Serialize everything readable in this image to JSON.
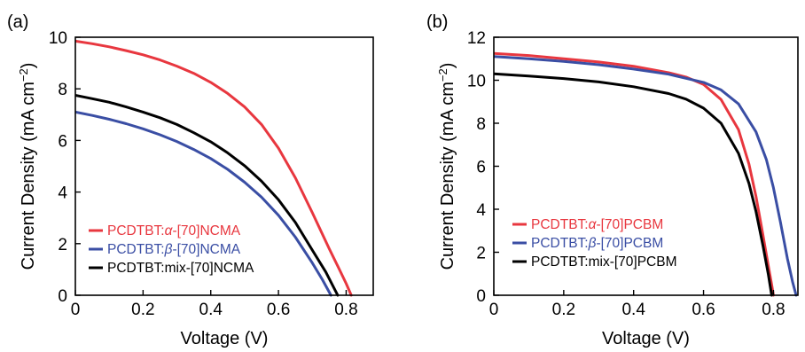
{
  "colors": {
    "red": "#e8373f",
    "blue": "#3a4ea4",
    "black": "#000000"
  },
  "chart_data": [
    {
      "type": "line",
      "panel_label": "(a)",
      "xlabel": "Voltage (V)",
      "ylabel": "Current Density (mA cm",
      "ylabel_sup": "−2",
      "ylabel_close": ")",
      "xlim": [
        0,
        0.88
      ],
      "ylim": [
        0,
        10
      ],
      "xticks": [
        0,
        0.2,
        0.4,
        0.6,
        0.8
      ],
      "xtick_labels": [
        "0",
        "0.2",
        "0.4",
        "0.6",
        "0.8"
      ],
      "yticks": [
        0,
        2,
        4,
        6,
        8,
        10
      ],
      "ytick_labels": [
        "0",
        "2",
        "4",
        "6",
        "8",
        "10"
      ],
      "legend_position": "bottom-left",
      "series": [
        {
          "name_prefix": "PCDTBT:",
          "name_greek": "α",
          "name_suffix": "-[70]NCMA",
          "color": "red",
          "x": [
            0,
            0.05,
            0.1,
            0.15,
            0.2,
            0.25,
            0.3,
            0.35,
            0.4,
            0.45,
            0.5,
            0.55,
            0.6,
            0.65,
            0.7,
            0.75,
            0.78,
            0.8,
            0.815
          ],
          "y": [
            9.85,
            9.75,
            9.63,
            9.48,
            9.32,
            9.12,
            8.88,
            8.6,
            8.25,
            7.82,
            7.3,
            6.62,
            5.7,
            4.55,
            3.2,
            1.8,
            1.0,
            0.45,
            0
          ]
        },
        {
          "name_prefix": "PCDTBT:",
          "name_greek": "β",
          "name_suffix": "-[70]NCMA",
          "color": "blue",
          "x": [
            0,
            0.05,
            0.1,
            0.15,
            0.2,
            0.25,
            0.3,
            0.35,
            0.4,
            0.45,
            0.5,
            0.55,
            0.6,
            0.65,
            0.7,
            0.73,
            0.755
          ],
          "y": [
            7.1,
            6.97,
            6.82,
            6.65,
            6.45,
            6.22,
            5.96,
            5.65,
            5.3,
            4.88,
            4.38,
            3.8,
            3.1,
            2.25,
            1.25,
            0.6,
            0
          ]
        },
        {
          "name_prefix": "PCDTBT:mix-[70]NCMA",
          "name_greek": "",
          "name_suffix": "",
          "color": "black",
          "x": [
            0,
            0.05,
            0.1,
            0.15,
            0.2,
            0.25,
            0.3,
            0.35,
            0.4,
            0.45,
            0.5,
            0.55,
            0.6,
            0.65,
            0.7,
            0.74,
            0.775
          ],
          "y": [
            7.75,
            7.62,
            7.48,
            7.3,
            7.1,
            6.88,
            6.62,
            6.3,
            5.95,
            5.52,
            5.02,
            4.42,
            3.7,
            2.82,
            1.75,
            0.9,
            0
          ]
        }
      ]
    },
    {
      "type": "line",
      "panel_label": "(b)",
      "xlabel": "Voltage (V)",
      "ylabel": "Current Density (mA cm",
      "ylabel_sup": "−2",
      "ylabel_close": ")",
      "xlim": [
        0,
        0.87
      ],
      "ylim": [
        0,
        12
      ],
      "xticks": [
        0,
        0.2,
        0.4,
        0.6,
        0.8
      ],
      "xtick_labels": [
        "0",
        "0.2",
        "0.4",
        "0.6",
        "0.8"
      ],
      "yticks": [
        0,
        2,
        4,
        6,
        8,
        10,
        12
      ],
      "ytick_labels": [
        "0",
        "2",
        "4",
        "6",
        "8",
        "10",
        "12"
      ],
      "legend_position": "bottom-left",
      "series": [
        {
          "name_prefix": "PCDTBT:",
          "name_greek": "α",
          "name_suffix": "-[70]PCBM",
          "color": "red",
          "x": [
            0,
            0.1,
            0.2,
            0.3,
            0.4,
            0.5,
            0.55,
            0.6,
            0.65,
            0.7,
            0.73,
            0.75,
            0.77,
            0.785,
            0.795,
            0.8
          ],
          "y": [
            11.25,
            11.15,
            11.0,
            10.85,
            10.65,
            10.35,
            10.15,
            9.8,
            9.1,
            7.7,
            6.1,
            4.6,
            2.8,
            1.4,
            0.5,
            0
          ]
        },
        {
          "name_prefix": "PCDTBT:",
          "name_greek": "β",
          "name_suffix": "-[70]PCBM",
          "color": "blue",
          "x": [
            0,
            0.1,
            0.2,
            0.3,
            0.4,
            0.5,
            0.6,
            0.65,
            0.7,
            0.75,
            0.78,
            0.8,
            0.82,
            0.84,
            0.855,
            0.865
          ],
          "y": [
            11.1,
            11.0,
            10.88,
            10.72,
            10.52,
            10.28,
            9.9,
            9.55,
            8.9,
            7.6,
            6.3,
            5.0,
            3.4,
            1.7,
            0.6,
            0
          ]
        },
        {
          "name_prefix": "PCDTBT:mix-[70]PCBM",
          "name_greek": "",
          "name_suffix": "",
          "color": "black",
          "x": [
            0,
            0.1,
            0.2,
            0.3,
            0.4,
            0.5,
            0.55,
            0.6,
            0.65,
            0.7,
            0.73,
            0.75,
            0.77,
            0.785,
            0.795
          ],
          "y": [
            10.3,
            10.2,
            10.08,
            9.92,
            9.7,
            9.38,
            9.12,
            8.7,
            8.0,
            6.6,
            5.2,
            3.9,
            2.3,
            1.0,
            0
          ]
        }
      ]
    }
  ]
}
